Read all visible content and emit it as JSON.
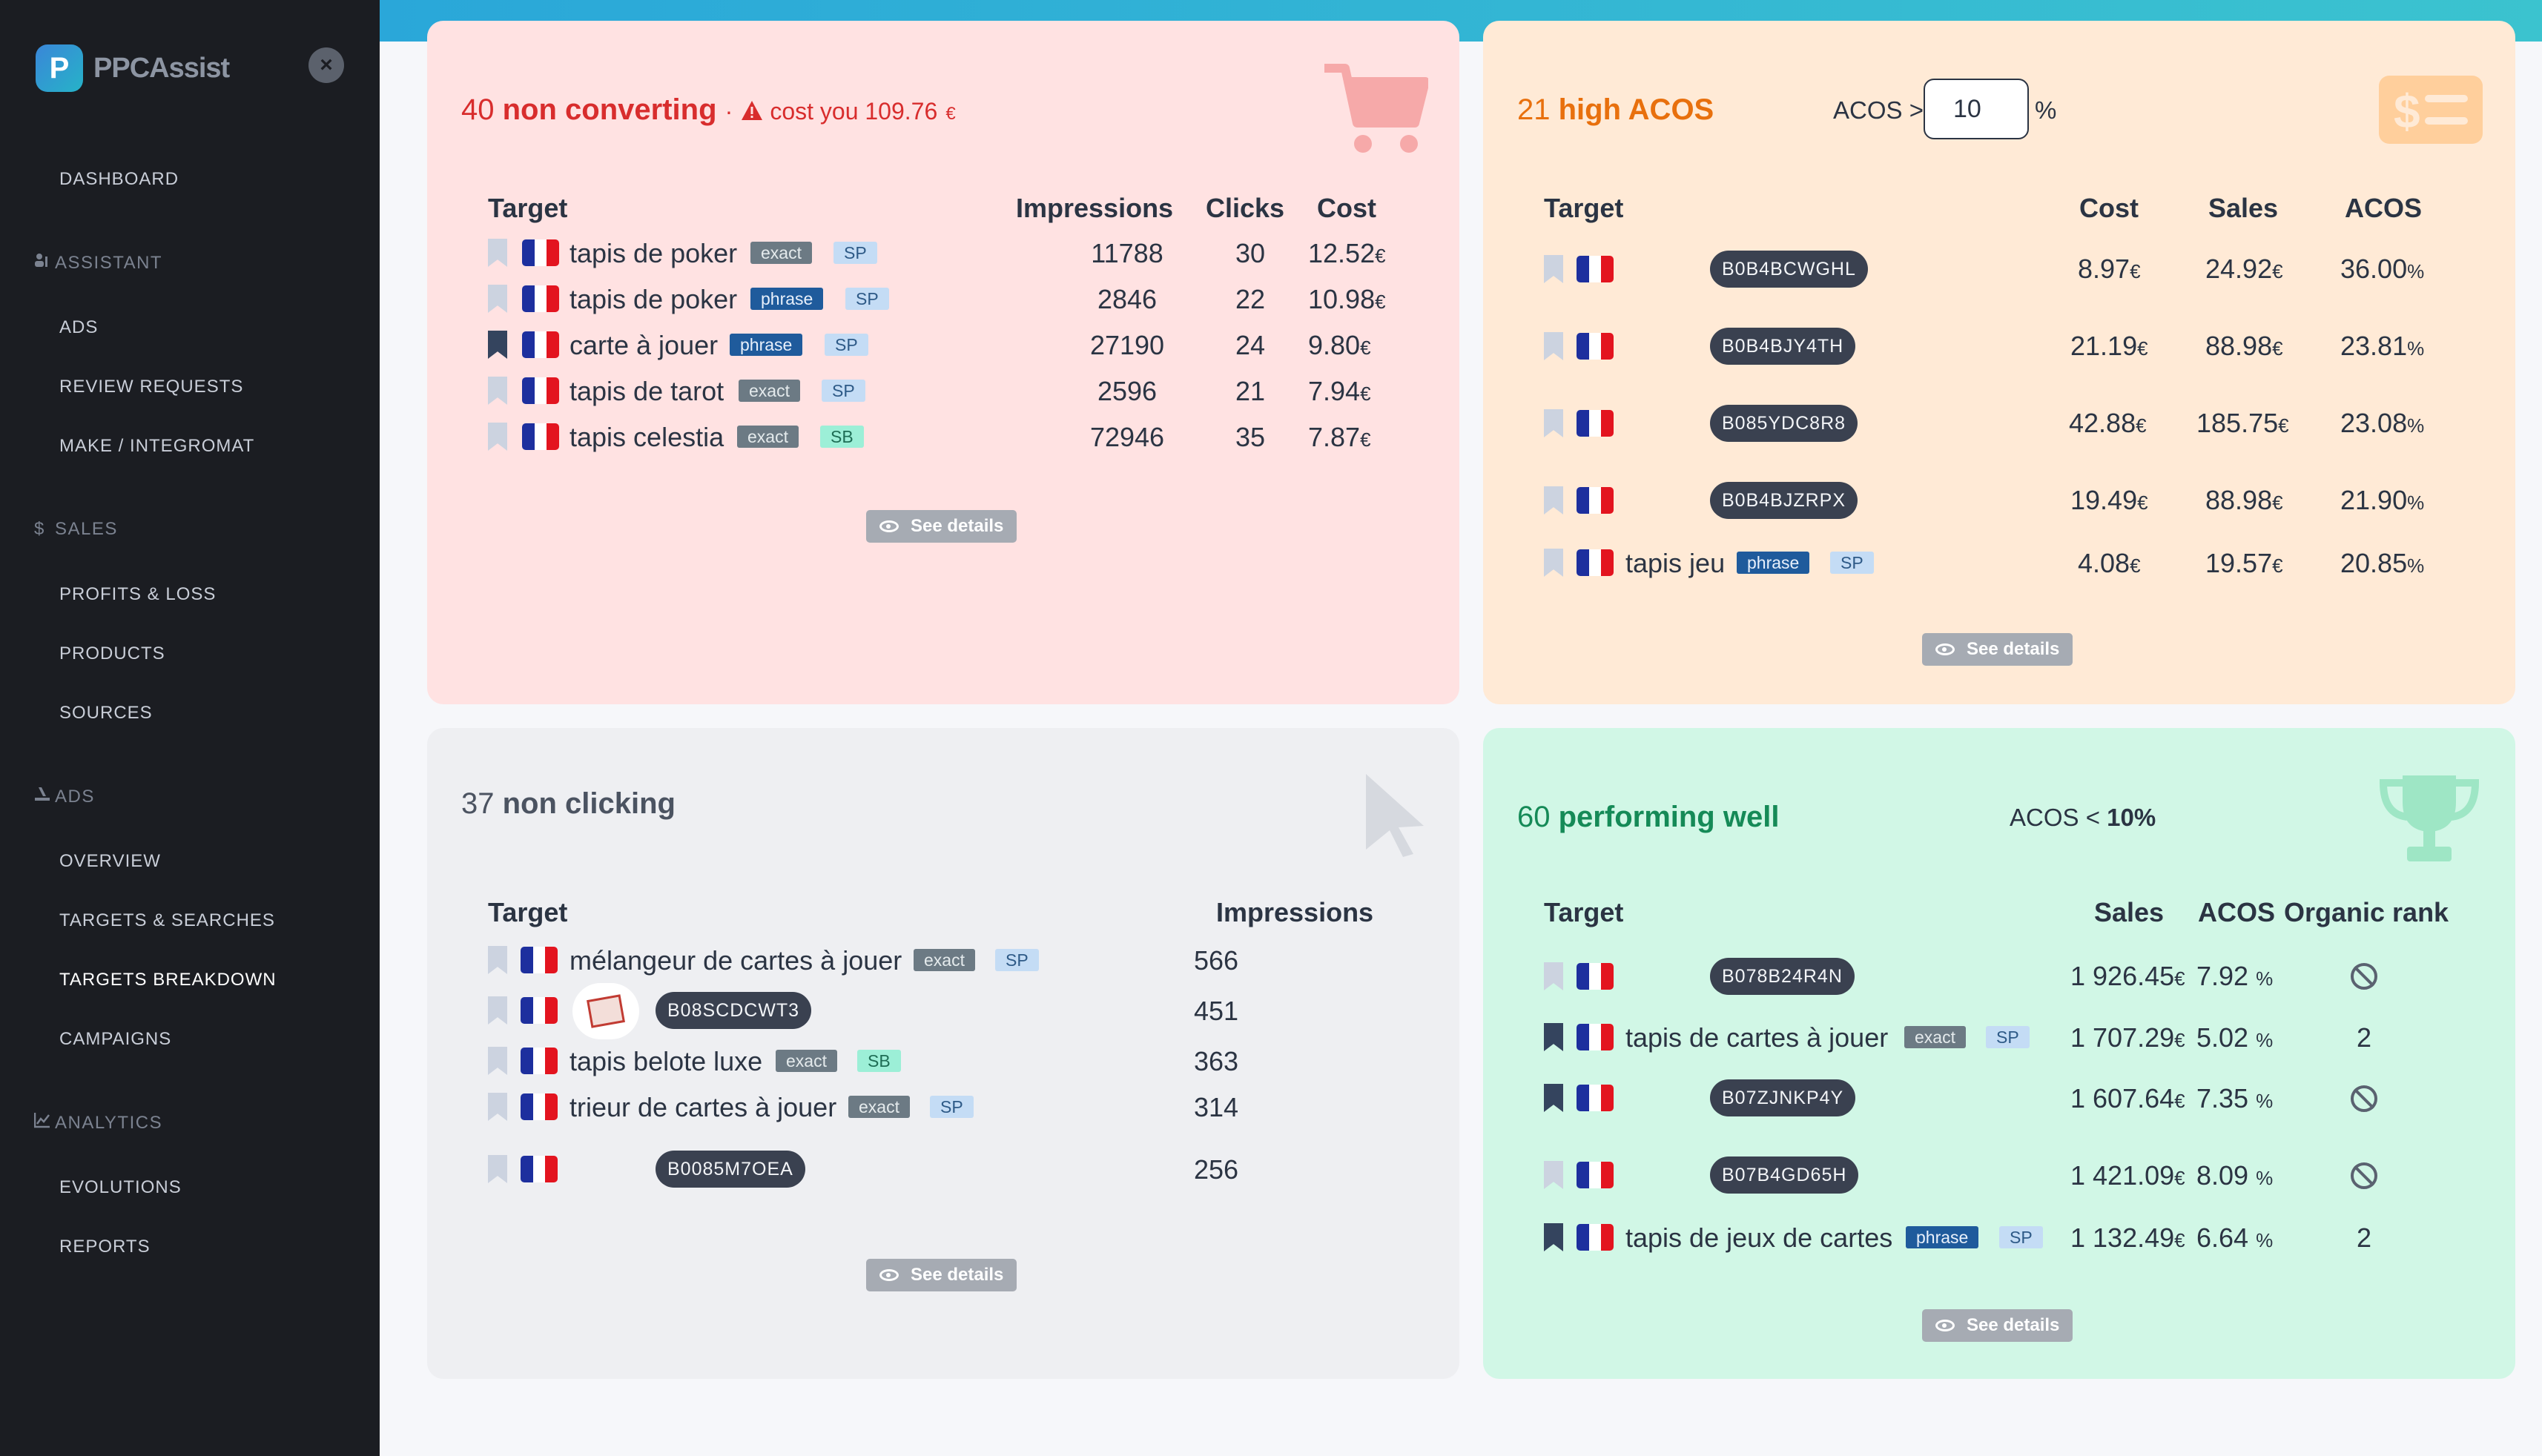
{
  "app": {
    "logo_letter": "P",
    "name": "PPCAssist",
    "close_icon": "×"
  },
  "nav": {
    "dashboard": "DASHBOARD",
    "assistant": "ASSISTANT",
    "ads_item": "ADS",
    "review_requests": "REVIEW REQUESTS",
    "make": "MAKE / INTEGROMAT",
    "sales": "SALES",
    "sales_icon": "$",
    "profits": "PROFITS & LOSS",
    "products": "PRODUCTS",
    "sources": "SOURCES",
    "ads": "ADS",
    "overview": "OVERVIEW",
    "targets_searches": "TARGETS & SEARCHES",
    "targets_breakdown": "TARGETS BREAKDOWN",
    "campaigns": "CAMPAIGNS",
    "analytics": "ANALYTICS",
    "evolutions": "EVOLUTIONS",
    "reports": "REPORTS"
  },
  "non_converting": {
    "count": "40",
    "label": "non converting",
    "sep": "·",
    "cost_label": "cost you 109.76",
    "cost_unit": "€",
    "headers": {
      "target": "Target",
      "impressions": "Impressions",
      "clicks": "Clicks",
      "cost": "Cost"
    },
    "rows": [
      {
        "name": "tapis de poker",
        "match": "exact",
        "type": "SP",
        "impressions": "11788",
        "clicks": "30",
        "cost": "12.52",
        "unit": "€"
      },
      {
        "name": "tapis de poker",
        "match": "phrase",
        "type": "SP",
        "impressions": "2846",
        "clicks": "22",
        "cost": "10.98",
        "unit": "€"
      },
      {
        "name": "carte à jouer",
        "match": "phrase",
        "type": "SP",
        "impressions": "27190",
        "clicks": "24",
        "cost": "9.80",
        "unit": "€"
      },
      {
        "name": "tapis de tarot",
        "match": "exact",
        "type": "SP",
        "impressions": "2596",
        "clicks": "21",
        "cost": "7.94",
        "unit": "€"
      },
      {
        "name": "tapis celestia",
        "match": "exact",
        "type": "SB",
        "impressions": "72946",
        "clicks": "35",
        "cost": "7.87",
        "unit": "€"
      }
    ],
    "see_details": "See details"
  },
  "high_acos": {
    "count": "21",
    "label": "high ACOS",
    "acos_label": "ACOS >",
    "acos_value": "10",
    "percent": "%",
    "headers": {
      "target": "Target",
      "cost": "Cost",
      "sales": "Sales",
      "acos": "ACOS"
    },
    "rows": [
      {
        "asin": "B0B4BCWGHL",
        "cost": "8.97",
        "sales": "24.92",
        "acos": "36.00"
      },
      {
        "asin": "B0B4BJY4TH",
        "cost": "21.19",
        "sales": "88.98",
        "acos": "23.81"
      },
      {
        "asin": "B085YDC8R8",
        "cost": "42.88",
        "sales": "185.75",
        "acos": "23.08"
      },
      {
        "asin": "B0B4BJZRPX",
        "cost": "19.49",
        "sales": "88.98",
        "acos": "21.90"
      }
    ],
    "last": {
      "name": "tapis jeu",
      "match": "phrase",
      "type": "SP",
      "cost": "4.08",
      "sales": "19.57",
      "acos": "20.85"
    },
    "euro": "€",
    "pct": "%",
    "see_details": "See details"
  },
  "non_clicking": {
    "count": "37",
    "label": "non clicking",
    "headers": {
      "target": "Target",
      "impressions": "Impressions"
    },
    "rows": [
      {
        "name": "mélangeur de cartes à jouer",
        "match": "exact",
        "type": "SP",
        "impressions": "566"
      },
      {
        "asin": "B08SCDCWT3",
        "impressions": "451"
      },
      {
        "name": "tapis belote luxe",
        "match": "exact",
        "type": "SB",
        "impressions": "363"
      },
      {
        "name": "trieur de cartes à jouer",
        "match": "exact",
        "type": "SP",
        "impressions": "314"
      },
      {
        "asin": "B0085M7OEA",
        "impressions": "256"
      }
    ],
    "see_details": "See details"
  },
  "performing": {
    "count": "60",
    "label": "performing well",
    "acos_label": "ACOS <",
    "acos_value": "10%",
    "headers": {
      "target": "Target",
      "sales": "Sales",
      "acos": "ACOS",
      "rank": "Organic rank"
    },
    "rows": [
      {
        "asin": "B078B24R4N",
        "sales": "1 926.45",
        "acos": "7.92",
        "rank": ""
      },
      {
        "name": "tapis de cartes à jouer",
        "match": "exact",
        "type": "SP",
        "sales": "1 707.29",
        "acos": "5.02",
        "rank": "2"
      },
      {
        "asin": "B07ZJNKP4Y",
        "sales": "1 607.64",
        "acos": "7.35",
        "rank": ""
      },
      {
        "asin": "B07B4GD65H",
        "sales": "1 421.09",
        "acos": "8.09",
        "rank": ""
      },
      {
        "name": "tapis de jeux de cartes",
        "match": "phrase",
        "type": "SP",
        "sales": "1 132.49",
        "acos": "6.64",
        "rank": "2"
      }
    ],
    "euro": "€",
    "pct": "%",
    "see_details": "See details"
  }
}
